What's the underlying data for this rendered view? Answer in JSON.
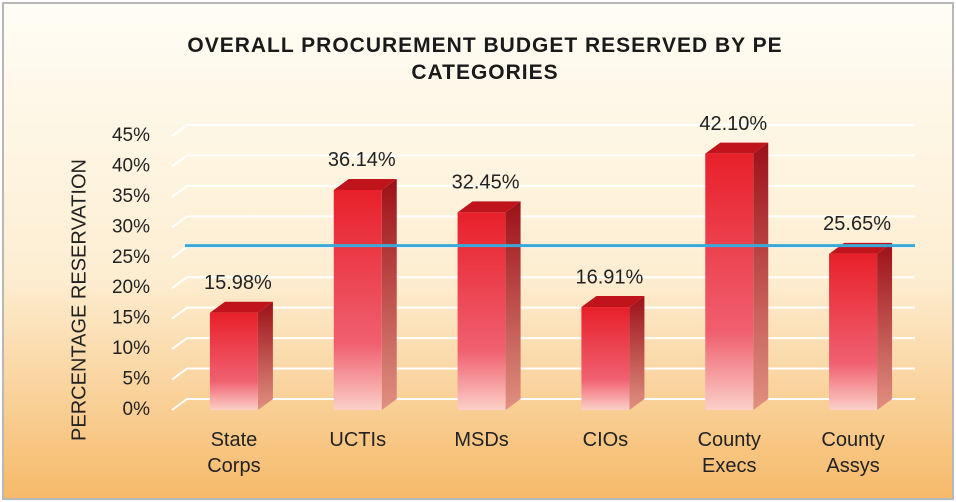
{
  "chart_data": {
    "type": "bar3d",
    "title": "OVERALL PROCUREMENT BUDGET RESERVED BY PE CATEGORIES",
    "y_label": "PERCENTAGE RESERVATION",
    "categories": [
      "State Corps",
      "UCTIs",
      "MSDs",
      "CIOs",
      "County Execs",
      "County Assys"
    ],
    "values": [
      15.98,
      36.14,
      32.45,
      16.91,
      42.1,
      25.65
    ],
    "value_labels": [
      "15.98%",
      "36.14%",
      "32.45%",
      "16.91%",
      "42.10%",
      "25.65%"
    ],
    "color": "#e8202a",
    "ylim": [
      0,
      45
    ],
    "yticks": [
      {
        "value": 0,
        "label": "0%"
      },
      {
        "value": 5,
        "label": "5%"
      },
      {
        "value": 10,
        "label": "10%"
      },
      {
        "value": 15,
        "label": "15%"
      },
      {
        "value": 20,
        "label": "20%"
      },
      {
        "value": 25,
        "label": "25%"
      },
      {
        "value": 30,
        "label": "30%"
      },
      {
        "value": 35,
        "label": "35%"
      },
      {
        "value": 40,
        "label": "40%"
      },
      {
        "value": 45,
        "label": "45%"
      }
    ],
    "grid": true,
    "reference_line": 27,
    "reference_color": "#3aa8d8"
  }
}
